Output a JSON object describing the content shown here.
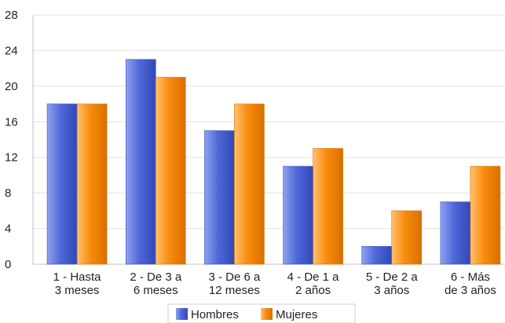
{
  "chart_data": {
    "type": "bar",
    "categories": [
      [
        "1 - Hasta",
        "3 meses"
      ],
      [
        "2 - De 3 a",
        "6 meses"
      ],
      [
        "3 - De 6 a",
        "12 meses"
      ],
      [
        "4 - De 1 a",
        "2 años"
      ],
      [
        "5 - De 2 a",
        "3 años"
      ],
      [
        "6 - Más",
        "de 3 años"
      ]
    ],
    "series": [
      {
        "name": "Hombres",
        "values": [
          18,
          23,
          15,
          11,
          2,
          7
        ],
        "color": "#4f68d8"
      },
      {
        "name": "Mujeres",
        "values": [
          18,
          21,
          18,
          13,
          6,
          11
        ],
        "color": "#f98c0c"
      }
    ],
    "yticks": [
      0,
      4,
      8,
      12,
      16,
      20,
      24,
      28
    ],
    "ylim": [
      0,
      28
    ],
    "grid": true,
    "legend": "bottom"
  }
}
